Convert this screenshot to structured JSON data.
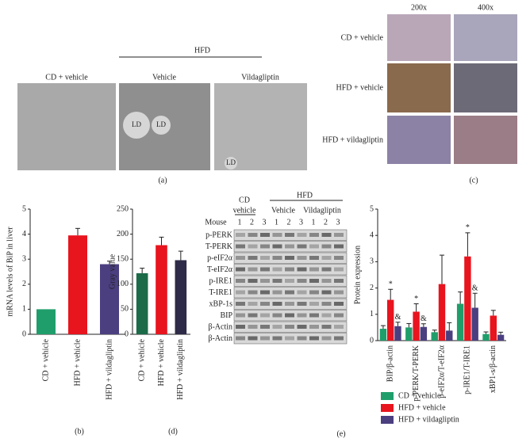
{
  "chart_data": [
    {
      "type": "bar",
      "ylabel": "mRNA levels of BiP in liver",
      "categories": [
        "CD + vehicle",
        "HFD + vehicle",
        "HFD + vildagliptin"
      ],
      "values": [
        1.0,
        3.95,
        2.8
      ],
      "errors": [
        null,
        0.28,
        0.12
      ],
      "colors": [
        "#1f9e6b",
        "#e8141e",
        "#4b3f80"
      ],
      "ylim": [
        0,
        5
      ],
      "yticks": [
        0,
        1,
        2,
        3,
        4,
        5
      ],
      "panel": "(b)"
    },
    {
      "type": "bar",
      "ylabel": "Gray value",
      "categories": [
        "CD + vehicle",
        "HFD + vehicle",
        "HFD + vildagliptin"
      ],
      "values": [
        122,
        178,
        148
      ],
      "errors": [
        10,
        16,
        18
      ],
      "colors": [
        "#1b6b48",
        "#e8141e",
        "#2d2b47"
      ],
      "ylim": [
        0,
        250
      ],
      "yticks": [
        0,
        50,
        100,
        150,
        200,
        250
      ],
      "panel": "(d)"
    },
    {
      "type": "grouped-bar",
      "ylabel": "Protein expression",
      "categories": [
        "BIP/β-actin",
        "p-PERK/T-PERK",
        "p-eIF2α/T-eIF2α",
        "p-IRE1/T-IRE1",
        "xBP1-s/β-actin"
      ],
      "series": [
        {
          "name": "CD + vehicle",
          "color": "#1f9e6b",
          "values": [
            0.45,
            0.5,
            0.32,
            1.4,
            0.25
          ],
          "errors": [
            0.12,
            0.15,
            0.08,
            0.45,
            0.08
          ]
        },
        {
          "name": "HFD + vehicle",
          "color": "#e8141e",
          "values": [
            1.55,
            1.1,
            2.15,
            3.2,
            0.95
          ],
          "errors": [
            0.4,
            0.3,
            1.1,
            0.9,
            0.2
          ],
          "markers": [
            "*",
            "*",
            null,
            "*",
            null
          ]
        },
        {
          "name": "HFD + vildagliptin",
          "color": "#4b3f80",
          "values": [
            0.55,
            0.52,
            0.38,
            1.25,
            0.22
          ],
          "errors": [
            0.15,
            0.12,
            0.3,
            0.55,
            0.1
          ],
          "markers": [
            "&",
            "&",
            null,
            "&",
            null
          ]
        }
      ],
      "ylim": [
        0,
        5
      ],
      "yticks": [
        0,
        1,
        2,
        3,
        4,
        5
      ],
      "legend": "bottom",
      "panel": "(e)"
    }
  ],
  "panel_a": {
    "labels": [
      "CD + vehicle",
      "Vehicle",
      "Vildagliptin"
    ],
    "group": "HFD",
    "inside": [
      "LD",
      "LD",
      "LD"
    ],
    "caption": "(a)"
  },
  "panel_c": {
    "columns": [
      "200x",
      "400x"
    ],
    "rows": [
      "CD + vehicle",
      "HFD + vehicle",
      "HFD + vildagliptin"
    ],
    "caption": "(c)"
  },
  "blot": {
    "group1": [
      "CD",
      "vehicle"
    ],
    "group2": "HFD",
    "subgroups": [
      "Vehicle",
      "Vildagliptin"
    ],
    "mouse": "Mouse",
    "lanes": [
      1,
      2,
      3,
      1,
      2,
      3,
      1,
      2,
      3
    ],
    "rows": [
      "p-PERK",
      "T-PERK",
      "p-eIF2α",
      "T-eIF2α",
      "p-IRE1",
      "T-IRE1",
      "xBP-1s",
      "BIP",
      "β-Actin",
      "β-Actin"
    ]
  }
}
